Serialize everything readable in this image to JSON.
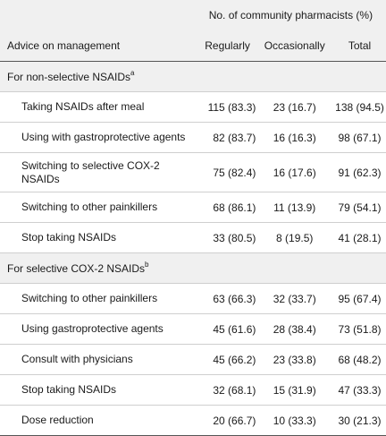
{
  "header": {
    "group_label": "No. of community pharmacists (%)",
    "col_advice": "Advice on management",
    "col_regularly": "Regularly",
    "col_occasionally": "Occasionally",
    "col_total": "Total"
  },
  "sections": [
    {
      "title": "For non-selective NSAIDs",
      "sup": "a",
      "rows": [
        {
          "label": "Taking NSAIDs after meal",
          "regularly": "115 (83.3)",
          "occasionally": "23 (16.7)",
          "total": "138 (94.5)"
        },
        {
          "label": "Using with gastroprotective agents",
          "regularly": "82 (83.7)",
          "occasionally": "16 (16.3)",
          "total": "98 (67.1)"
        },
        {
          "label": "Switching to selective COX-2 NSAIDs",
          "regularly": "75 (82.4)",
          "occasionally": "16 (17.6)",
          "total": "91 (62.3)"
        },
        {
          "label": "Switching to other painkillers",
          "regularly": "68 (86.1)",
          "occasionally": "11 (13.9)",
          "total": "79 (54.1)"
        },
        {
          "label": "Stop taking NSAIDs",
          "regularly": "33 (80.5)",
          "occasionally": "8 (19.5)",
          "total": "41 (28.1)"
        }
      ]
    },
    {
      "title": "For selective COX-2 NSAIDs",
      "sup": "b",
      "rows": [
        {
          "label": "Switching to other painkillers",
          "regularly": "63 (66.3)",
          "occasionally": "32 (33.7)",
          "total": "95 (67.4)"
        },
        {
          "label": "Using gastroprotective agents",
          "regularly": "45 (61.6)",
          "occasionally": "28 (38.4)",
          "total": "73 (51.8)"
        },
        {
          "label": "Consult with physicians",
          "regularly": "45 (66.2)",
          "occasionally": "23 (33.8)",
          "total": "68 (48.2)"
        },
        {
          "label": "Stop taking NSAIDs",
          "regularly": "32 (68.1)",
          "occasionally": "15 (31.9)",
          "total": "47 (33.3)"
        },
        {
          "label": "Dose reduction",
          "regularly": "20 (66.7)",
          "occasionally": "10 (33.3)",
          "total": "30 (21.3)"
        }
      ]
    }
  ]
}
